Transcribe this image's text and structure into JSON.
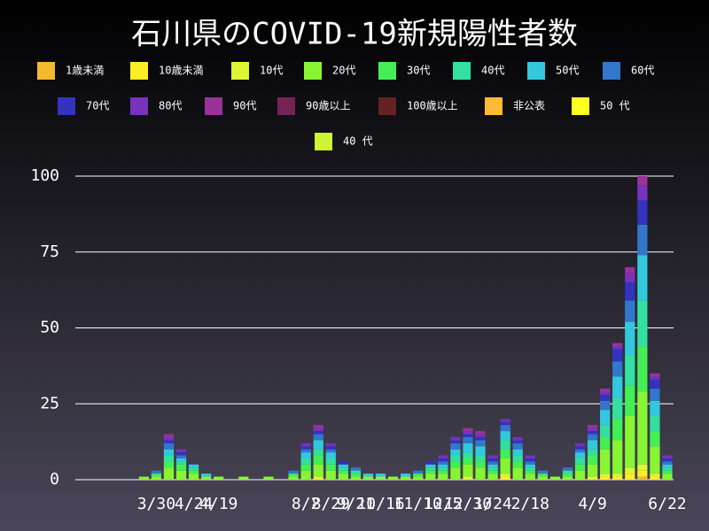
{
  "chart_data": {
    "type": "stacked_bar",
    "title": "石川県のCOVID-19新規陽性者数",
    "categories": [
      null,
      null,
      null,
      null,
      null,
      null,
      "3/30",
      null,
      null,
      "4/24",
      null,
      "4/19",
      null,
      null,
      null,
      null,
      null,
      null,
      "8/2",
      null,
      "8/29",
      null,
      "9/21",
      null,
      "10/16",
      null,
      null,
      "11/10",
      null,
      "12/5",
      null,
      "12/30",
      null,
      "1/24",
      null,
      null,
      "2/18",
      null,
      null,
      null,
      null,
      "4/9",
      null,
      null,
      null,
      null,
      null,
      "6/22"
    ],
    "ylim": [
      0,
      100
    ],
    "yticks": [
      0,
      25,
      50,
      75,
      100
    ],
    "grid": true,
    "series": [
      {
        "name": "1歳未満",
        "color": "#f5b82e",
        "values": [
          0,
          0,
          0,
          0,
          0,
          0,
          0,
          0,
          0,
          0,
          0,
          0,
          0,
          0,
          0,
          0,
          0,
          0,
          0,
          0,
          0,
          0,
          0,
          0,
          0,
          0,
          0,
          0,
          0,
          0,
          0,
          0,
          0,
          0,
          0,
          0,
          0,
          0,
          0,
          0,
          0,
          0,
          0,
          0,
          0,
          1,
          0,
          0
        ]
      },
      {
        "name": "10歳未満",
        "color": "#ffee22",
        "values": [
          0,
          0,
          0,
          0,
          0,
          0,
          0,
          0,
          0,
          0,
          0,
          0,
          0,
          0,
          0,
          0,
          0,
          0,
          0,
          0,
          0,
          0,
          0,
          0,
          0,
          0,
          0,
          0,
          0,
          0,
          0,
          0,
          0,
          0,
          1,
          0,
          0,
          0,
          0,
          0,
          0,
          0,
          1,
          1,
          2,
          2,
          1,
          0
        ]
      },
      {
        "name": "10代",
        "color": "#ddf533",
        "values": [
          0,
          0,
          0,
          0,
          0,
          0,
          0,
          0,
          0,
          0,
          0,
          0,
          0,
          0,
          0,
          0,
          0,
          0,
          0,
          1,
          0,
          0,
          0,
          0,
          0,
          0,
          0,
          0,
          0,
          0,
          0,
          1,
          0,
          0,
          1,
          0,
          0,
          0,
          0,
          0,
          0,
          1,
          1,
          1,
          2,
          2,
          1,
          0
        ]
      },
      {
        "name": "20代",
        "color": "#88f533",
        "values": [
          0,
          0,
          0,
          0,
          0,
          1,
          1,
          4,
          3,
          2,
          1,
          1,
          0,
          1,
          0,
          1,
          0,
          1,
          3,
          4,
          3,
          2,
          1,
          1,
          1,
          1,
          1,
          1,
          2,
          2,
          4,
          4,
          4,
          2,
          5,
          4,
          2,
          1,
          1,
          1,
          3,
          4,
          8,
          11,
          17,
          24,
          9,
          2
        ]
      },
      {
        "name": "30代",
        "color": "#44ee55",
        "values": [
          0,
          0,
          0,
          0,
          0,
          0,
          1,
          2,
          2,
          1,
          0,
          0,
          0,
          0,
          0,
          0,
          0,
          1,
          2,
          3,
          2,
          1,
          1,
          0,
          0,
          0,
          0,
          1,
          1,
          1,
          2,
          2,
          2,
          1,
          3,
          2,
          1,
          1,
          0,
          1,
          2,
          3,
          4,
          7,
          10,
          15,
          5,
          1
        ]
      },
      {
        "name": "40代",
        "color": "#33e0a0",
        "values": [
          0,
          0,
          0,
          0,
          0,
          0,
          0,
          2,
          1,
          1,
          0,
          0,
          0,
          0,
          0,
          0,
          0,
          0,
          2,
          2,
          2,
          1,
          1,
          0,
          0,
          0,
          0,
          0,
          1,
          1,
          2,
          2,
          2,
          1,
          3,
          2,
          1,
          0,
          0,
          1,
          2,
          2,
          4,
          7,
          10,
          15,
          5,
          1
        ]
      },
      {
        "name": "50代",
        "color": "#33c8dd",
        "values": [
          0,
          0,
          0,
          0,
          0,
          0,
          0,
          2,
          1,
          1,
          1,
          0,
          0,
          0,
          0,
          0,
          0,
          0,
          2,
          3,
          2,
          1,
          0,
          1,
          1,
          0,
          1,
          0,
          1,
          1,
          2,
          3,
          3,
          1,
          3,
          2,
          1,
          0,
          0,
          0,
          2,
          3,
          5,
          7,
          11,
          15,
          5,
          1
        ]
      },
      {
        "name": "60代",
        "color": "#3377cc",
        "values": [
          0,
          0,
          0,
          0,
          0,
          0,
          1,
          2,
          1,
          0,
          0,
          0,
          0,
          0,
          0,
          0,
          0,
          1,
          1,
          2,
          1,
          0,
          1,
          0,
          0,
          0,
          0,
          1,
          0,
          1,
          2,
          2,
          2,
          1,
          2,
          2,
          1,
          1,
          0,
          1,
          1,
          2,
          3,
          5,
          7,
          10,
          4,
          1
        ]
      },
      {
        "name": "70代",
        "color": "#3333c0",
        "values": [
          0,
          0,
          0,
          0,
          0,
          0,
          0,
          1,
          1,
          0,
          0,
          0,
          0,
          0,
          0,
          0,
          0,
          0,
          1,
          1,
          1,
          1,
          0,
          0,
          0,
          0,
          0,
          0,
          1,
          1,
          1,
          1,
          1,
          1,
          1,
          1,
          1,
          0,
          0,
          0,
          1,
          1,
          2,
          4,
          6,
          8,
          3,
          1
        ]
      },
      {
        "name": "80代",
        "color": "#7733bb",
        "values": [
          0,
          0,
          0,
          0,
          0,
          0,
          0,
          1,
          1,
          0,
          0,
          0,
          0,
          0,
          0,
          0,
          0,
          0,
          1,
          1,
          1,
          0,
          0,
          0,
          0,
          0,
          0,
          0,
          0,
          1,
          1,
          1,
          1,
          1,
          1,
          1,
          1,
          0,
          0,
          0,
          1,
          1,
          1,
          1,
          3,
          5,
          1,
          1
        ]
      },
      {
        "name": "90代",
        "color": "#993399",
        "values": [
          0,
          0,
          0,
          0,
          0,
          0,
          0,
          1,
          0,
          0,
          0,
          0,
          0,
          0,
          0,
          0,
          0,
          0,
          0,
          1,
          0,
          0,
          0,
          0,
          0,
          0,
          0,
          0,
          0,
          0,
          0,
          1,
          1,
          0,
          0,
          0,
          0,
          0,
          0,
          0,
          0,
          1,
          1,
          1,
          2,
          3,
          1,
          0
        ]
      },
      {
        "name": "90歳以上",
        "color": "#772255",
        "values": [
          0,
          0,
          0,
          0,
          0,
          0,
          0,
          0,
          0,
          0,
          0,
          0,
          0,
          0,
          0,
          0,
          0,
          0,
          0,
          0,
          0,
          0,
          0,
          0,
          0,
          0,
          0,
          0,
          0,
          0,
          0,
          0,
          0,
          0,
          0,
          0,
          0,
          0,
          0,
          0,
          0,
          0,
          0,
          0,
          0,
          0,
          0,
          0
        ]
      },
      {
        "name": "100歳以上",
        "color": "#662222",
        "values": [
          0,
          0,
          0,
          0,
          0,
          0,
          0,
          0,
          0,
          0,
          0,
          0,
          0,
          0,
          0,
          0,
          0,
          0,
          0,
          0,
          0,
          0,
          0,
          0,
          0,
          0,
          0,
          0,
          0,
          0,
          0,
          0,
          0,
          0,
          0,
          0,
          0,
          0,
          0,
          0,
          0,
          0,
          0,
          0,
          0,
          0,
          0,
          0
        ]
      },
      {
        "name": "非公表",
        "color": "#ffbb33",
        "values": [
          0,
          0,
          0,
          0,
          0,
          0,
          0,
          0,
          0,
          0,
          0,
          0,
          0,
          0,
          0,
          0,
          0,
          0,
          0,
          0,
          0,
          0,
          0,
          0,
          0,
          0,
          0,
          0,
          0,
          0,
          0,
          0,
          0,
          0,
          0,
          0,
          0,
          0,
          0,
          0,
          0,
          0,
          0,
          0,
          0,
          0,
          0,
          0
        ]
      },
      {
        "name": "50 代",
        "color": "#ffff22",
        "values": [
          0,
          0,
          0,
          0,
          0,
          0,
          0,
          0,
          0,
          0,
          0,
          0,
          0,
          0,
          0,
          0,
          0,
          0,
          0,
          0,
          0,
          0,
          0,
          0,
          0,
          0,
          0,
          0,
          0,
          0,
          0,
          0,
          0,
          0,
          0,
          0,
          0,
          0,
          0,
          0,
          0,
          0,
          0,
          0,
          0,
          0,
          0,
          0
        ]
      },
      {
        "name": "40 代",
        "color": "#ccf533",
        "values": [
          0,
          0,
          0,
          0,
          0,
          0,
          0,
          0,
          0,
          0,
          0,
          0,
          0,
          0,
          0,
          0,
          0,
          0,
          0,
          0,
          0,
          0,
          0,
          0,
          0,
          0,
          0,
          0,
          0,
          0,
          0,
          0,
          0,
          0,
          0,
          0,
          0,
          0,
          0,
          0,
          0,
          0,
          0,
          0,
          0,
          0,
          0,
          0
        ]
      }
    ]
  }
}
